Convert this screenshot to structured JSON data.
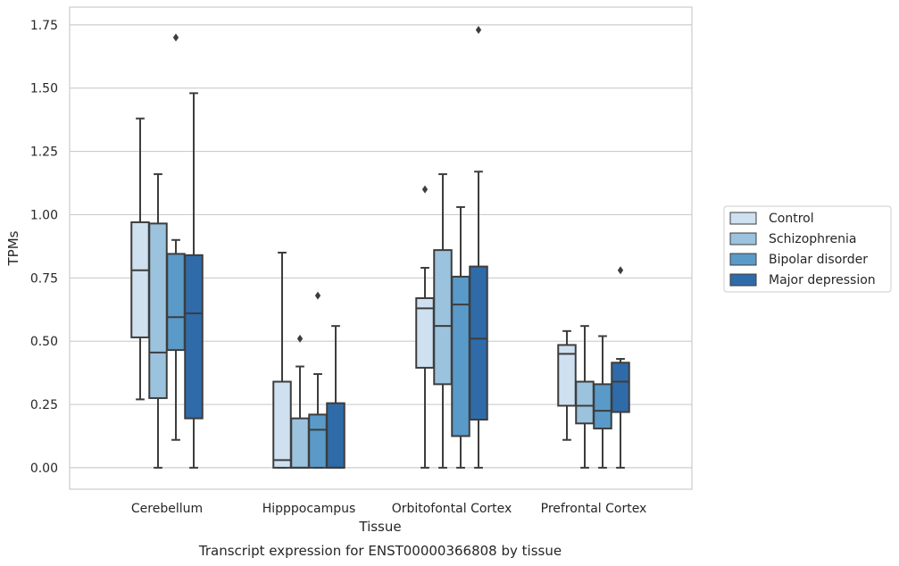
{
  "chart_data": {
    "type": "box",
    "caption": "Transcript expression for ENST00000366808 by tissue",
    "xlabel": "Tissue",
    "ylabel": "TPMs",
    "ylim": [
      -0.085,
      1.82
    ],
    "yticks": [
      0.0,
      0.25,
      0.5,
      0.75,
      1.0,
      1.25,
      1.5,
      1.75
    ],
    "ytick_labels": [
      "0.00",
      "0.25",
      "0.50",
      "0.75",
      "1.00",
      "1.25",
      "1.50",
      "1.75"
    ],
    "grid": true,
    "legend_position": "right",
    "categories": [
      "Cerebellum",
      "Hipppocampus",
      "Orbitofontal Cortex",
      "Prefrontal Cortex"
    ],
    "series": [
      {
        "name": "Control",
        "color": "#cfe0f0",
        "boxes": [
          {
            "whislo": 0.27,
            "q1": 0.515,
            "med": 0.78,
            "q3": 0.97,
            "whishi": 1.38,
            "fliers": []
          },
          {
            "whislo": 0.0,
            "q1": 0.0,
            "med": 0.03,
            "q3": 0.34,
            "whishi": 0.85,
            "fliers": []
          },
          {
            "whislo": 0.0,
            "q1": 0.395,
            "med": 0.63,
            "q3": 0.67,
            "whishi": 0.79,
            "fliers": [
              1.1
            ]
          },
          {
            "whislo": 0.11,
            "q1": 0.245,
            "med": 0.45,
            "q3": 0.485,
            "whishi": 0.54,
            "fliers": []
          }
        ]
      },
      {
        "name": "Schizophrenia",
        "color": "#9bc3dd",
        "boxes": [
          {
            "whislo": 0.0,
            "q1": 0.275,
            "med": 0.455,
            "q3": 0.965,
            "whishi": 1.16,
            "fliers": []
          },
          {
            "whislo": 0.0,
            "q1": 0.0,
            "med": 0.0,
            "q3": 0.195,
            "whishi": 0.4,
            "fliers": [
              0.51
            ]
          },
          {
            "whislo": 0.0,
            "q1": 0.33,
            "med": 0.56,
            "q3": 0.86,
            "whishi": 1.16,
            "fliers": []
          },
          {
            "whislo": 0.0,
            "q1": 0.175,
            "med": 0.245,
            "q3": 0.34,
            "whishi": 0.56,
            "fliers": []
          }
        ]
      },
      {
        "name": "Bipolar disorder",
        "color": "#5a9ac9",
        "boxes": [
          {
            "whislo": 0.11,
            "q1": 0.465,
            "med": 0.595,
            "q3": 0.845,
            "whishi": 0.9,
            "fliers": [
              1.7
            ]
          },
          {
            "whislo": 0.0,
            "q1": 0.0,
            "med": 0.15,
            "q3": 0.21,
            "whishi": 0.37,
            "fliers": [
              0.68
            ]
          },
          {
            "whislo": 0.0,
            "q1": 0.125,
            "med": 0.645,
            "q3": 0.755,
            "whishi": 1.03,
            "fliers": []
          },
          {
            "whislo": 0.0,
            "q1": 0.155,
            "med": 0.225,
            "q3": 0.33,
            "whishi": 0.52,
            "fliers": []
          }
        ]
      },
      {
        "name": "Major depression",
        "color": "#2f6ba8",
        "boxes": [
          {
            "whislo": 0.0,
            "q1": 0.195,
            "med": 0.61,
            "q3": 0.84,
            "whishi": 1.48,
            "fliers": []
          },
          {
            "whislo": 0.0,
            "q1": 0.0,
            "med": 0.0,
            "q3": 0.255,
            "whishi": 0.56,
            "fliers": []
          },
          {
            "whislo": 0.0,
            "q1": 0.19,
            "med": 0.51,
            "q3": 0.795,
            "whishi": 1.17,
            "fliers": [
              1.73
            ]
          },
          {
            "whislo": 0.0,
            "q1": 0.22,
            "med": 0.34,
            "q3": 0.415,
            "whishi": 0.43,
            "fliers": [
              0.78
            ]
          }
        ]
      }
    ]
  },
  "colors": {
    "grid": "#cccccc",
    "frame": "#cccccc",
    "box_edge": "#3d3d3d"
  }
}
